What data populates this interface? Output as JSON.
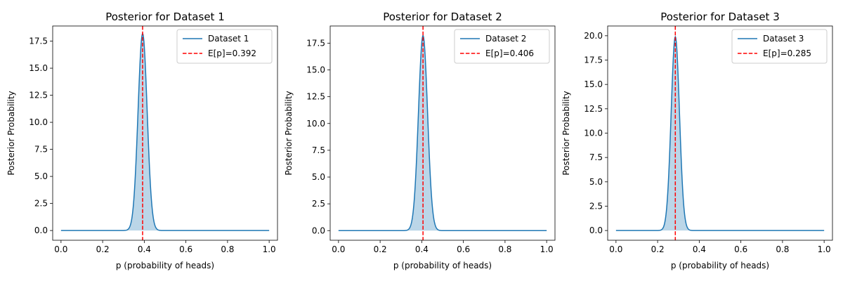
{
  "chart_data": [
    {
      "type": "line",
      "title": "Posterior for Dataset 1",
      "xlabel": "p (probability of heads)",
      "ylabel": "Posterior Probability",
      "xlim": [
        -0.04,
        1.04
      ],
      "ylim": [
        -0.9,
        18.9
      ],
      "xticks": [
        0.0,
        0.2,
        0.4,
        0.6,
        0.8,
        1.0
      ],
      "xtick_labels": [
        "0.0",
        "0.2",
        "0.4",
        "0.6",
        "0.8",
        "1.0"
      ],
      "yticks": [
        0.0,
        2.5,
        5.0,
        7.5,
        10.0,
        12.5,
        15.0,
        17.5
      ],
      "ytick_labels": [
        "0.0",
        "2.5",
        "5.0",
        "7.5",
        "10.0",
        "12.5",
        "15.0",
        "17.5"
      ],
      "grid": false,
      "legend_position": "top-right",
      "series": [
        {
          "name": "Dataset 1",
          "kind": "density-line-filled",
          "color": "#1f77b4",
          "fill_color": "#1f77b4",
          "peak_x": 0.392,
          "peak_y": 18.2,
          "x": [
            0.0,
            0.3,
            0.32,
            0.34,
            0.36,
            0.37,
            0.38,
            0.39,
            0.392,
            0.4,
            0.41,
            0.42,
            0.44,
            0.46,
            0.48,
            0.5,
            1.0
          ],
          "y": [
            0.0,
            0.1,
            0.6,
            2.6,
            7.4,
            10.9,
            14.6,
            17.6,
            18.2,
            17.2,
            14.9,
            11.7,
            5.6,
            1.7,
            0.3,
            0.0,
            0.0
          ]
        },
        {
          "name": "E[p]=0.392",
          "kind": "vline",
          "x": 0.392,
          "color": "#ff0000",
          "dashed": true
        }
      ]
    },
    {
      "type": "line",
      "title": "Posterior for Dataset 2",
      "xlabel": "p (probability of heads)",
      "ylabel": "Posterior Probability",
      "xlim": [
        -0.04,
        1.04
      ],
      "ylim": [
        -0.9,
        19.1
      ],
      "xticks": [
        0.0,
        0.2,
        0.4,
        0.6,
        0.8,
        1.0
      ],
      "xtick_labels": [
        "0.0",
        "0.2",
        "0.4",
        "0.6",
        "0.8",
        "1.0"
      ],
      "yticks": [
        0.0,
        2.5,
        5.0,
        7.5,
        10.0,
        12.5,
        15.0,
        17.5
      ],
      "ytick_labels": [
        "0.0",
        "2.5",
        "5.0",
        "7.5",
        "10.0",
        "12.5",
        "15.0",
        "17.5"
      ],
      "grid": false,
      "legend_position": "top-right",
      "series": [
        {
          "name": "Dataset 2",
          "kind": "density-line-filled",
          "color": "#1f77b4",
          "fill_color": "#1f77b4",
          "peak_x": 0.406,
          "peak_y": 18.2,
          "x": [
            0.0,
            0.31,
            0.33,
            0.35,
            0.37,
            0.38,
            0.39,
            0.4,
            0.406,
            0.41,
            0.42,
            0.43,
            0.45,
            0.47,
            0.49,
            0.51,
            1.0
          ],
          "y": [
            0.0,
            0.1,
            0.6,
            2.6,
            7.4,
            10.9,
            14.6,
            17.6,
            18.2,
            17.6,
            14.9,
            11.7,
            5.6,
            1.7,
            0.3,
            0.0,
            0.0
          ]
        },
        {
          "name": "E[p]=0.406",
          "kind": "vline",
          "x": 0.406,
          "color": "#ff0000",
          "dashed": true
        }
      ]
    },
    {
      "type": "line",
      "title": "Posterior for Dataset 3",
      "xlabel": "p (probability of heads)",
      "ylabel": "Posterior Probability",
      "xlim": [
        -0.04,
        1.04
      ],
      "ylim": [
        -1.0,
        21.0
      ],
      "xticks": [
        0.0,
        0.2,
        0.4,
        0.6,
        0.8,
        1.0
      ],
      "xtick_labels": [
        "0.0",
        "0.2",
        "0.4",
        "0.6",
        "0.8",
        "1.0"
      ],
      "yticks": [
        0.0,
        2.5,
        5.0,
        7.5,
        10.0,
        12.5,
        15.0,
        17.5,
        20.0
      ],
      "ytick_labels": [
        "0.0",
        "2.5",
        "5.0",
        "7.5",
        "10.0",
        "12.5",
        "15.0",
        "17.5",
        "20.0"
      ],
      "grid": false,
      "legend_position": "top-right",
      "series": [
        {
          "name": "Dataset 3",
          "kind": "density-line-filled",
          "color": "#1f77b4",
          "fill_color": "#1f77b4",
          "peak_x": 0.285,
          "peak_y": 19.9,
          "x": [
            0.0,
            0.2,
            0.22,
            0.24,
            0.26,
            0.27,
            0.28,
            0.285,
            0.29,
            0.3,
            0.31,
            0.32,
            0.34,
            0.36,
            0.38,
            0.4,
            1.0
          ],
          "y": [
            0.0,
            0.1,
            0.6,
            3.0,
            9.3,
            14.0,
            18.6,
            19.9,
            19.4,
            16.8,
            12.5,
            8.1,
            2.1,
            0.4,
            0.05,
            0.0,
            0.0
          ]
        },
        {
          "name": "E[p]=0.285",
          "kind": "vline",
          "x": 0.285,
          "color": "#ff0000",
          "dashed": true
        }
      ]
    }
  ]
}
